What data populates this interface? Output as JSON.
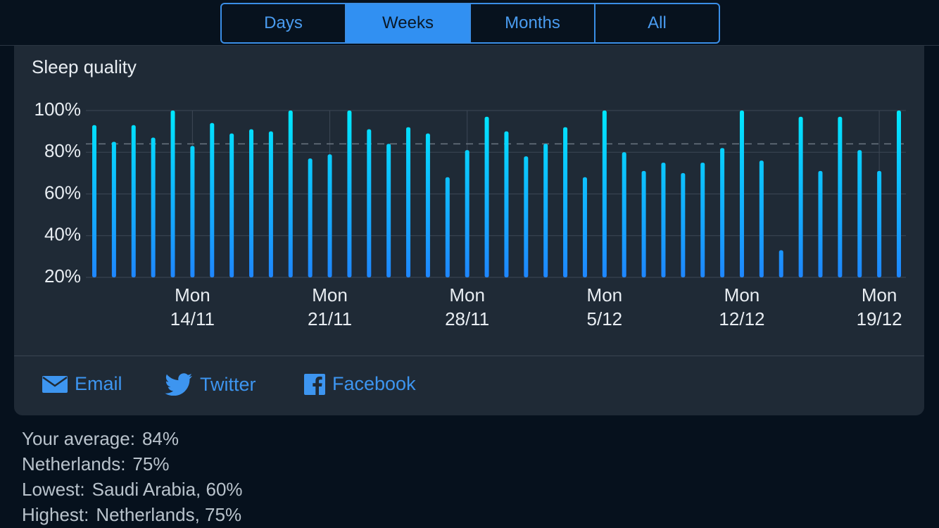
{
  "tabs": [
    "Days",
    "Weeks",
    "Months",
    "All"
  ],
  "active_tab": "Weeks",
  "chart_data": {
    "type": "bar",
    "title": "Sleep quality",
    "categories": [
      null,
      null,
      null,
      null,
      null,
      "Mon\n14/11",
      null,
      null,
      null,
      null,
      null,
      null,
      "Mon\n21/11",
      null,
      null,
      null,
      null,
      null,
      null,
      "Mon\n28/11",
      null,
      null,
      null,
      null,
      null,
      null,
      "Mon\n5/12",
      null,
      null,
      null,
      null,
      null,
      null,
      "Mon\n12/12",
      null,
      null,
      null,
      null,
      null,
      null,
      "Mon\n19/12",
      null
    ],
    "values": [
      93,
      85,
      93,
      87,
      100,
      83,
      94,
      89,
      91,
      90,
      100,
      77,
      79,
      100,
      91,
      84,
      92,
      89,
      68,
      81,
      97,
      90,
      78,
      84,
      92,
      68,
      100,
      80,
      71,
      75,
      70,
      75,
      82,
      100,
      76,
      33,
      97,
      71,
      97,
      81,
      71,
      100
    ],
    "average": 84,
    "ylim": [
      20,
      100
    ],
    "yticks": [
      {
        "value": 20,
        "label": "20%"
      },
      {
        "value": 40,
        "label": "40%"
      },
      {
        "value": 60,
        "label": "60%"
      },
      {
        "value": 80,
        "label": "80%"
      },
      {
        "value": 100,
        "label": "100%"
      }
    ],
    "grid": true
  },
  "share": [
    "Email",
    "Twitter",
    "Facebook"
  ],
  "stats": [
    [
      "Your average:",
      "84%"
    ],
    [
      "Netherlands:",
      "75%"
    ],
    [
      "Lowest:",
      "Saudi Arabia, 60%"
    ],
    [
      "Highest:",
      "Netherlands, 75%"
    ]
  ]
}
